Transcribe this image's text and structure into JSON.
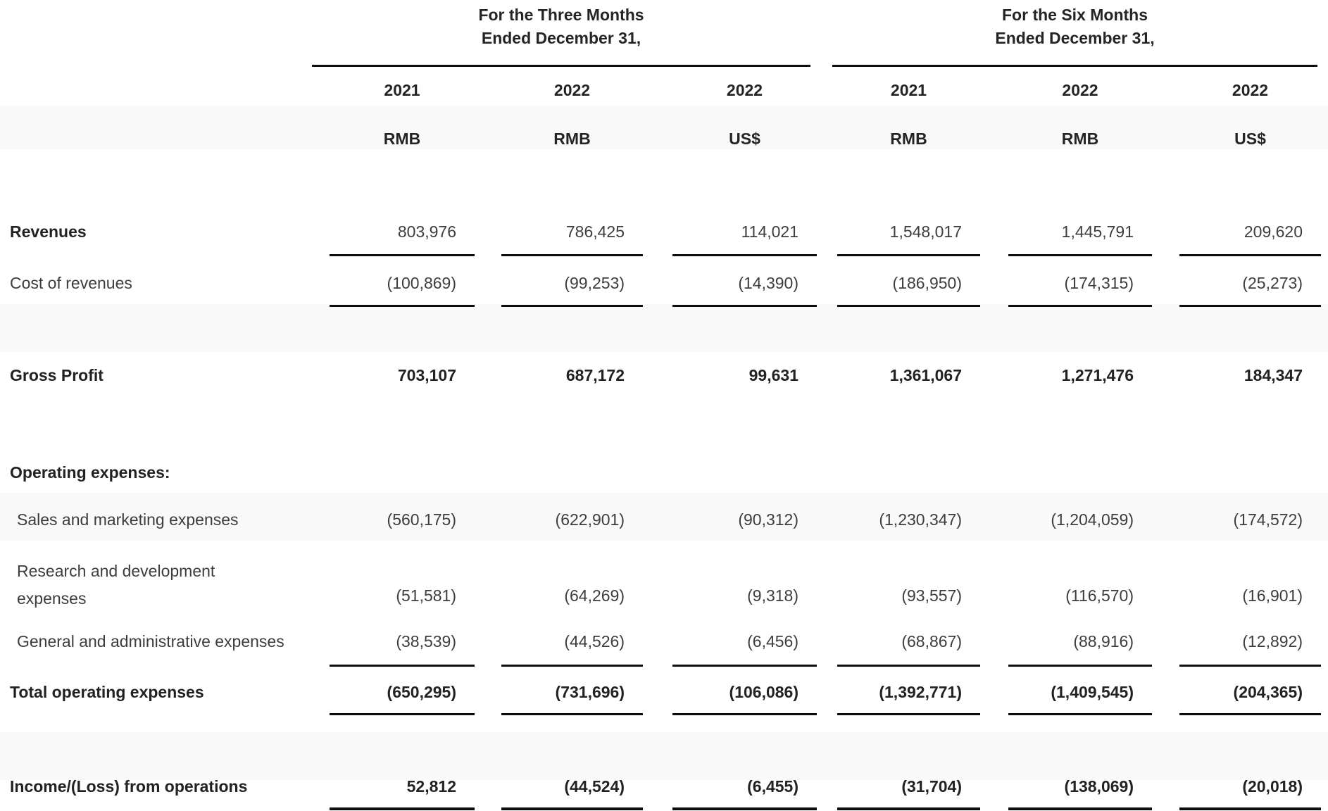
{
  "table": {
    "group_headers": [
      {
        "line1": "For the Three Months",
        "line2": "Ended December 31,"
      },
      {
        "line1": "For the Six Months",
        "line2": "Ended December 31,"
      }
    ],
    "year_headers": [
      "2021",
      "2022",
      "2022",
      "2021",
      "2022",
      "2022"
    ],
    "currency_headers": [
      "RMB",
      "RMB",
      "US$",
      "RMB",
      "RMB",
      "US$"
    ],
    "rows": [
      {
        "label": "Revenues",
        "values": [
          "803,976",
          "786,425",
          "114,021",
          "1,548,017",
          "1,445,791",
          "209,620"
        ]
      },
      {
        "label": "Cost of revenues",
        "values": [
          "(100,869)",
          "(99,253)",
          "(14,390)",
          "(186,950)",
          "(174,315)",
          "(25,273)"
        ]
      },
      {
        "label": "Gross Profit",
        "values": [
          "703,107",
          "687,172",
          "99,631",
          "1,361,067",
          "1,271,476",
          "184,347"
        ]
      },
      {
        "label": "Operating expenses:",
        "values": []
      },
      {
        "label": "Sales and marketing expenses",
        "values": [
          "(560,175)",
          "(622,901)",
          "(90,312)",
          "(1,230,347)",
          "(1,204,059)",
          "(174,572)"
        ]
      },
      {
        "label": "Research and development",
        "label2": "expenses",
        "values": [
          "(51,581)",
          "(64,269)",
          "(9,318)",
          "(93,557)",
          "(116,570)",
          "(16,901)"
        ]
      },
      {
        "label": "General and administrative expenses",
        "values": [
          "(38,539)",
          "(44,526)",
          "(6,456)",
          "(68,867)",
          "(88,916)",
          "(12,892)"
        ]
      },
      {
        "label": "Total operating expenses",
        "values": [
          "(650,295)",
          "(731,696)",
          "(106,086)",
          "(1,392,771)",
          "(1,409,545)",
          "(204,365)"
        ]
      },
      {
        "label": "Income/(Loss) from operations",
        "values": [
          "52,812",
          "(44,524)",
          "(6,455)",
          "(31,704)",
          "(138,069)",
          "(20,018)"
        ]
      }
    ]
  },
  "colors": {
    "background": "#ffffff",
    "text_regular": "#3d3d3d",
    "text_bold": "#222222",
    "rule_line": "#0d0d0d",
    "band": "#fafafa"
  }
}
